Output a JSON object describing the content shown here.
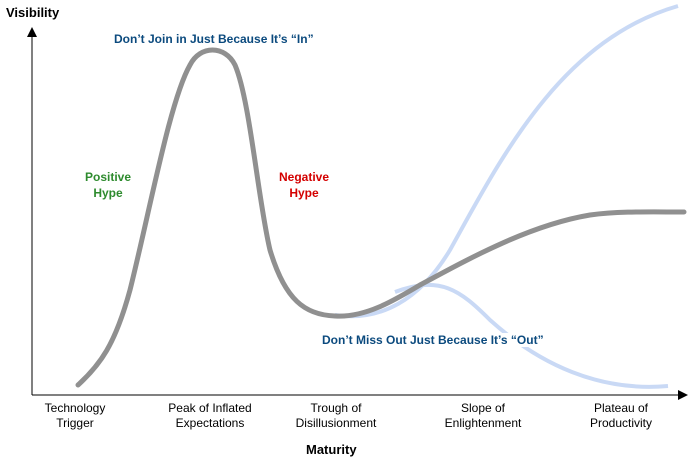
{
  "axes": {
    "y_label": "Visibility",
    "x_label": "Maturity"
  },
  "phases": [
    {
      "line1": "Technology",
      "line2": "Trigger"
    },
    {
      "line1": "Peak of Inflated",
      "line2": "Expectations"
    },
    {
      "line1": "Trough of",
      "line2": "Disillusionment"
    },
    {
      "line1": "Slope of",
      "line2": "Enlightenment"
    },
    {
      "line1": "Plateau of",
      "line2": "Productivity"
    }
  ],
  "annotations": {
    "top": "Don’t Join in Just Because It’s “In”",
    "bottom": "Don’t Miss Out Just Because It’s “Out”",
    "positive_line1": "Positive",
    "positive_line2": "Hype",
    "negative_line1": "Negative",
    "negative_line2": "Hype"
  },
  "colors": {
    "hype_curve": "#909090",
    "alt_curves": "#c9d9f5",
    "positive": "#2e8b2e",
    "negative": "#d40000",
    "advice": "#0b4a7e"
  }
}
